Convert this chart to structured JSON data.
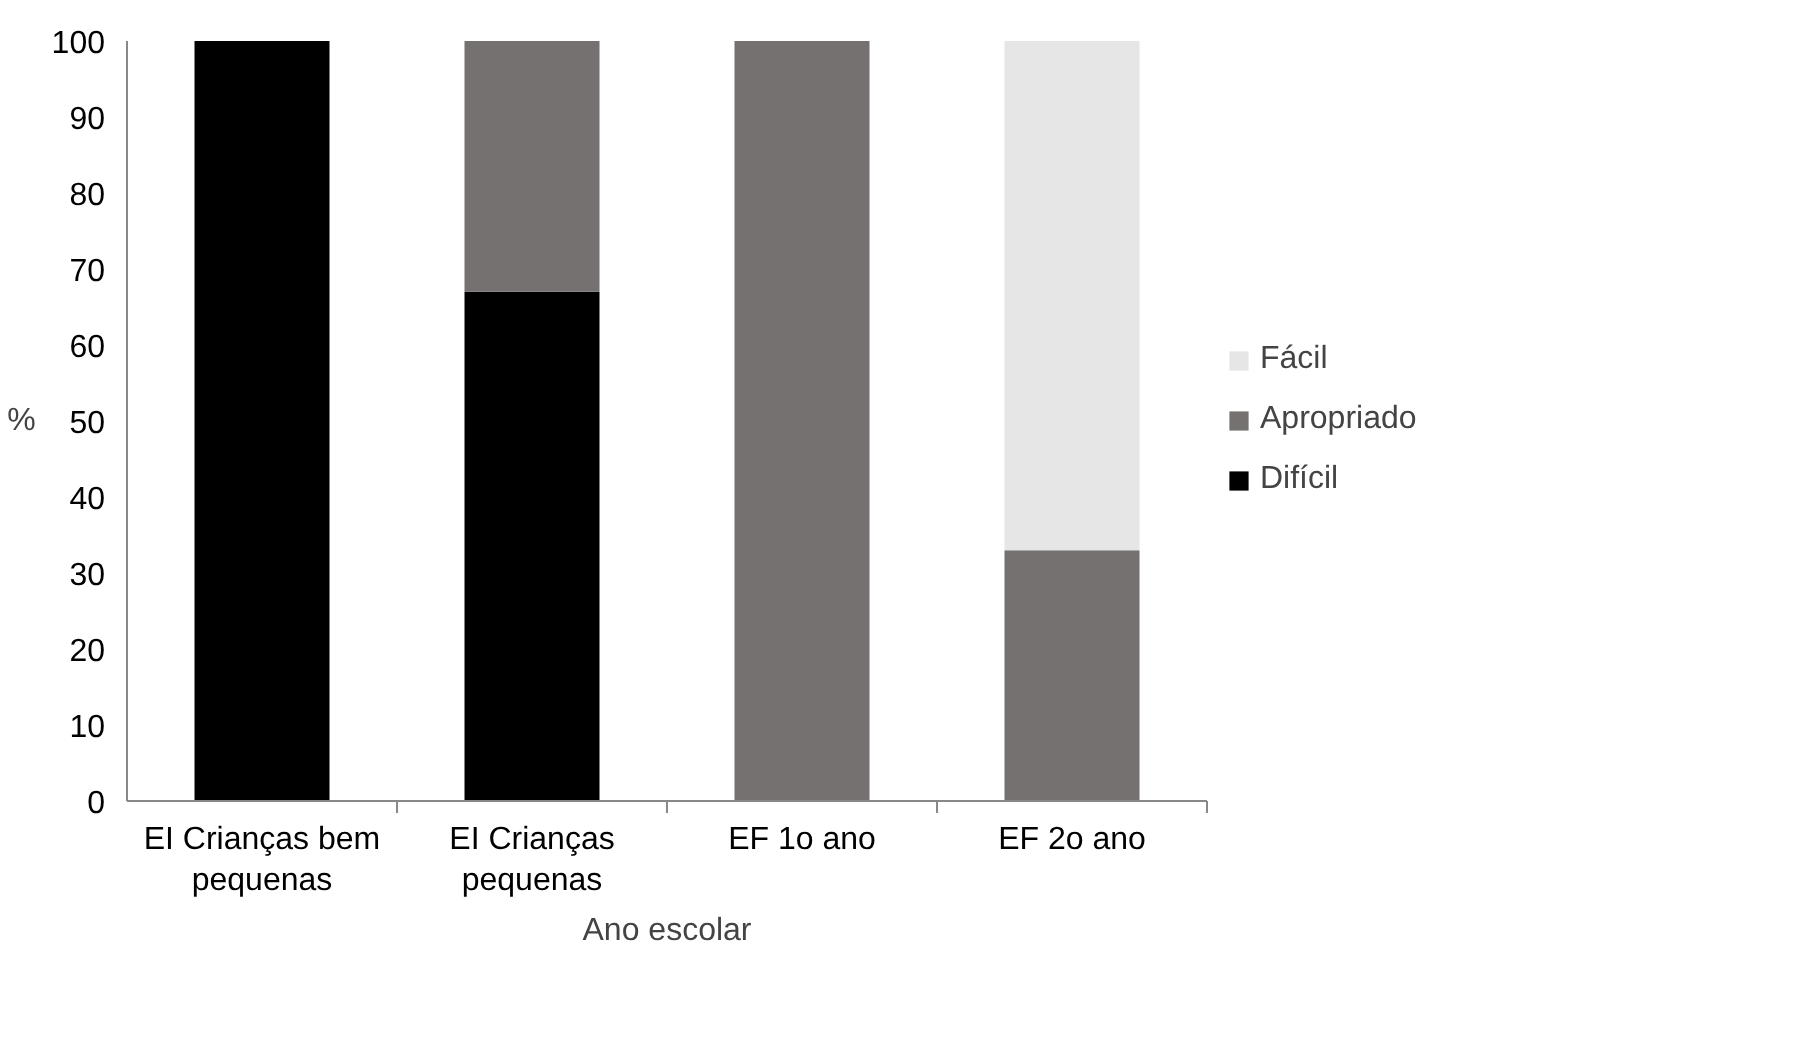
{
  "chart_data": {
    "type": "bar",
    "stacked": true,
    "xlabel": "Ano escolar",
    "ylabel": "%",
    "categories": [
      "EI Crianças bem pequenas",
      "EI Crianças pequenas",
      "EF 1o ano",
      "EF 2o ano"
    ],
    "series": [
      {
        "name": "Difícil",
        "color": "#000000",
        "values": [
          100,
          67,
          0,
          0
        ]
      },
      {
        "name": "Apropriado",
        "color": "#767171",
        "values": [
          0,
          33,
          100,
          33
        ]
      },
      {
        "name": "Fácil",
        "color": "#e7e6e6",
        "values": [
          0,
          0,
          0,
          67
        ]
      }
    ],
    "ylim": [
      0,
      100
    ],
    "yticks": [
      0,
      10,
      20,
      30,
      40,
      50,
      60,
      70,
      80,
      90,
      100
    ],
    "grid": false,
    "legend": "right"
  }
}
